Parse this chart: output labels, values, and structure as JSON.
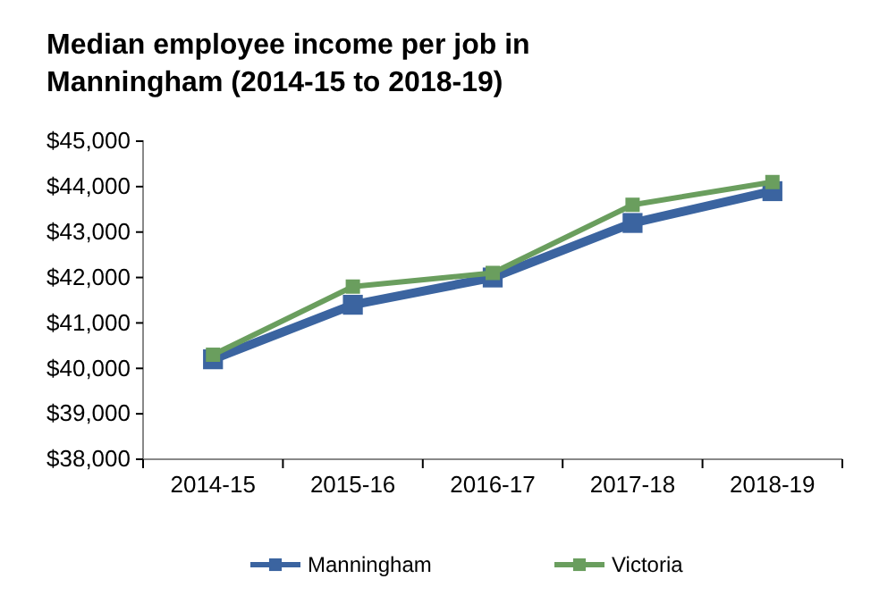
{
  "chart_data": {
    "type": "line",
    "title": "Median employee income per job in Manningham (2014-15 to 2018-19)",
    "categories": [
      "2014-15",
      "2015-16",
      "2016-17",
      "2017-18",
      "2018-19"
    ],
    "series": [
      {
        "name": "Manningham",
        "color": "#3b64a0",
        "values": [
          40200,
          41400,
          42000,
          43200,
          43900
        ]
      },
      {
        "name": "Victoria",
        "color": "#6a9e5e",
        "values": [
          40300,
          41800,
          42100,
          43600,
          44100
        ]
      }
    ],
    "ylim": [
      38000,
      45000
    ],
    "yticks": [
      {
        "value": 38000,
        "label": "$38,000"
      },
      {
        "value": 39000,
        "label": "$39,000"
      },
      {
        "value": 40000,
        "label": "$40,000"
      },
      {
        "value": 41000,
        "label": "$41,000"
      },
      {
        "value": 42000,
        "label": "$42,000"
      },
      {
        "value": 43000,
        "label": "$43,000"
      },
      {
        "value": 44000,
        "label": "$44,000"
      },
      {
        "value": 45000,
        "label": "$45,000"
      }
    ],
    "grid": false,
    "legend": "bottom",
    "marker": "square",
    "line_style": "solid"
  }
}
